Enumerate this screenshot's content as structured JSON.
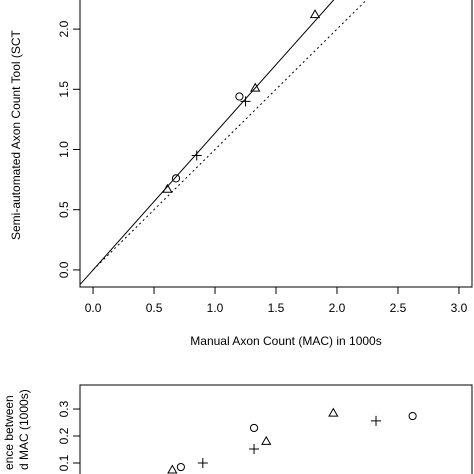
{
  "chart_data": [
    {
      "type": "scatter",
      "x_label": "Manual Axon Count (MAC) in 1000s",
      "y_label": "Semi-automated Axon Count Tool (SCT",
      "xlim": [
        -0.107,
        3.107
      ],
      "ylim": [
        -0.142,
        2.25
      ],
      "xticks": [
        {
          "value": 0,
          "label": "0.0"
        },
        0.5,
        {
          "value": 1,
          "label": "1.0"
        },
        1.5,
        {
          "value": 2,
          "label": "2.0"
        },
        2.5,
        {
          "value": 3,
          "label": "3.0"
        }
      ],
      "yticks": [
        {
          "value": 0,
          "label": "0.0"
        },
        0.5,
        {
          "value": 1,
          "label": "1.0"
        },
        1.5,
        {
          "value": 2,
          "label": "2.0"
        }
      ],
      "series": [
        {
          "marker": "triangle",
          "x": [
            0.61,
            1.33,
            1.82
          ],
          "values": [
            0.67,
            1.51,
            2.12
          ]
        },
        {
          "marker": "circle",
          "x": [
            0.68,
            1.2
          ],
          "values": [
            0.76,
            1.44
          ]
        },
        {
          "marker": "plus",
          "x": [
            0.85,
            1.25
          ],
          "values": [
            0.95,
            1.4
          ]
        }
      ],
      "lines": [
        {
          "style": "solid",
          "x": [
            -0.107,
            1.98
          ],
          "values": [
            -0.122,
            2.25
          ]
        },
        {
          "style": "dotted",
          "x": [
            0,
            2.25
          ],
          "values": [
            0,
            2.25
          ]
        }
      ]
    },
    {
      "type": "scatter",
      "y_label": [
        "ence between",
        "d MAC (1000s)"
      ],
      "xlim": [
        -0.107,
        3.107
      ],
      "ylim": [
        0,
        0.389
      ],
      "yticks": [
        0.1,
        0.2,
        0.3
      ],
      "series": [
        {
          "marker": "triangle",
          "x": [
            0.65,
            1.42,
            1.97
          ],
          "values": [
            0.074,
            0.18,
            0.285
          ]
        },
        {
          "marker": "circle",
          "x": [
            0.72,
            1.32,
            2.62
          ],
          "values": [
            0.085,
            0.23,
            0.274
          ]
        },
        {
          "marker": "plus",
          "x": [
            0.9,
            1.32,
            2.32
          ],
          "values": [
            0.1,
            0.152,
            0.256
          ]
        }
      ]
    }
  ]
}
